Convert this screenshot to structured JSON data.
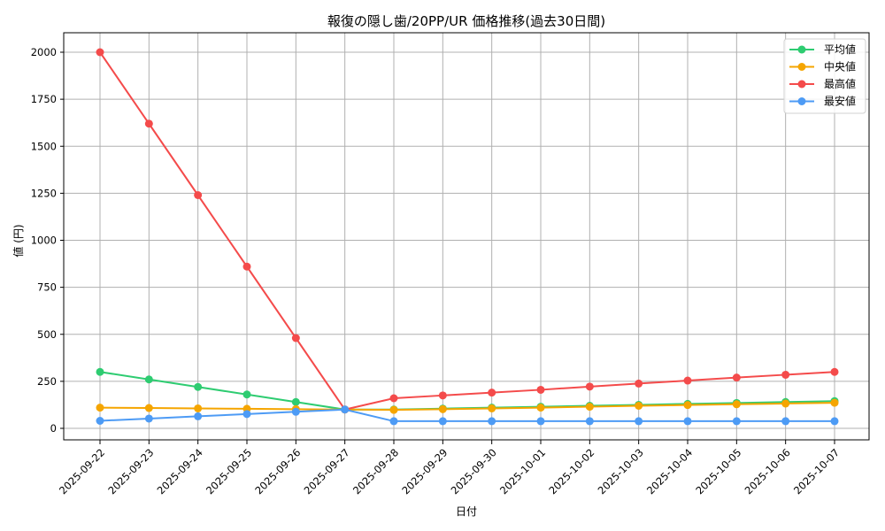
{
  "chart_data": {
    "type": "line",
    "title": "報復の隠し歯/20PP/UR 価格推移(過去30日間)",
    "xlabel": "日付",
    "ylabel": "値 (円)",
    "ylim": [
      -60,
      2100
    ],
    "yticks": [
      0,
      250,
      500,
      750,
      1000,
      1250,
      1500,
      1750,
      2000
    ],
    "grid": true,
    "legend_position": "upper right",
    "categories": [
      "2025-09-22",
      "2025-09-23",
      "2025-09-24",
      "2025-09-25",
      "2025-09-26",
      "2025-09-27",
      "2025-09-28",
      "2025-09-29",
      "2025-09-30",
      "2025-10-01",
      "2025-10-02",
      "2025-10-03",
      "2025-10-04",
      "2025-10-05",
      "2025-10-06",
      "2025-10-07"
    ],
    "series": [
      {
        "name": "平均値",
        "color": "#2ecc71",
        "values": [
          300,
          260,
          220,
          180,
          140,
          100,
          100,
          105,
          110,
          115,
          120,
          125,
          130,
          135,
          140,
          145
        ]
      },
      {
        "name": "中央値",
        "color": "#f5a500",
        "values": [
          110,
          108,
          106,
          104,
          102,
          100,
          98,
          102,
          106,
          110,
          115,
          120,
          124,
          128,
          132,
          136
        ]
      },
      {
        "name": "最高値",
        "color": "#f44b4b",
        "values": [
          2000,
          1620,
          1240,
          860,
          480,
          100,
          160,
          175,
          190,
          205,
          222,
          238,
          254,
          270,
          285,
          300
        ]
      },
      {
        "name": "最安値",
        "color": "#4d9bf5",
        "values": [
          40,
          52,
          64,
          76,
          88,
          100,
          38,
          38,
          38,
          38,
          38,
          38,
          38,
          38,
          38,
          38
        ]
      }
    ]
  }
}
